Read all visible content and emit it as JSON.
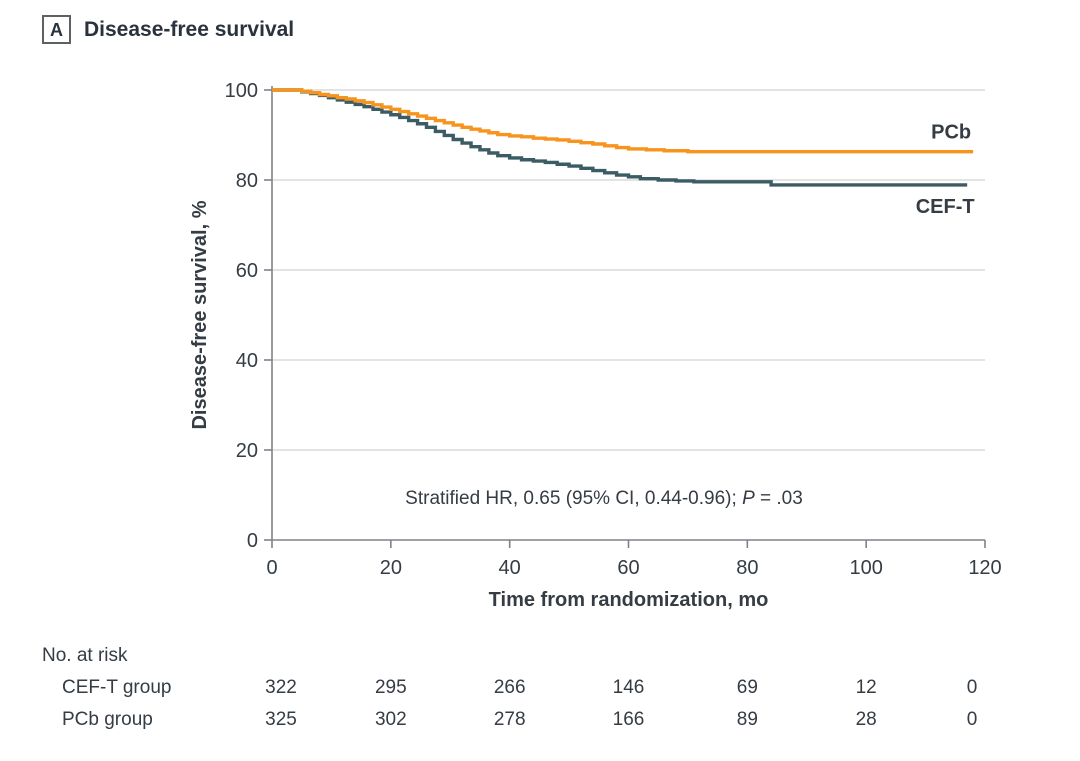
{
  "panel": {
    "label": "A",
    "title": "Disease-free survival"
  },
  "chart_data": {
    "type": "line",
    "variant": "kaplan-meier-step",
    "title": "Disease-free survival",
    "xlabel": "Time from randomization, mo",
    "ylabel": "Disease-free survival, %",
    "xlim": [
      0,
      120
    ],
    "ylim": [
      0,
      100
    ],
    "xticks": [
      0,
      20,
      40,
      60,
      80,
      100,
      120
    ],
    "yticks": [
      0,
      20,
      40,
      60,
      80,
      100
    ],
    "grid": "horizontal",
    "legend_position": "right-of-curves",
    "colors": {
      "gridline": "#dadada",
      "axis": "#7f8287",
      "text": "#353c44",
      "label_text": "#2a323c"
    },
    "annotation": {
      "prefix": "Stratified HR, 0.65 (95% CI, 0.44-0.96); ",
      "p_symbol": "P",
      "p_value": " = .03"
    },
    "series": [
      {
        "name": "CEF-T",
        "label": "CEF-T",
        "color": "#3b5c64",
        "points": [
          [
            0,
            100
          ],
          [
            3.5,
            100
          ],
          [
            5,
            99.6
          ],
          [
            6.5,
            99.2
          ],
          [
            8,
            98.8
          ],
          [
            9.5,
            98.3
          ],
          [
            11,
            97.8
          ],
          [
            12.5,
            97.3
          ],
          [
            14,
            96.8
          ],
          [
            15.5,
            96.3
          ],
          [
            17,
            95.7
          ],
          [
            18.5,
            95.1
          ],
          [
            20,
            94.5
          ],
          [
            21.5,
            93.9
          ],
          [
            23,
            93.2
          ],
          [
            24.5,
            92.5
          ],
          [
            26,
            91.7
          ],
          [
            27.5,
            90.8
          ],
          [
            29,
            89.9
          ],
          [
            30.5,
            89.0
          ],
          [
            32,
            88.2
          ],
          [
            33.5,
            87.4
          ],
          [
            35,
            86.7
          ],
          [
            36.5,
            86.0
          ],
          [
            38,
            85.4
          ],
          [
            40,
            84.9
          ],
          [
            42,
            84.5
          ],
          [
            44,
            84.2
          ],
          [
            46,
            83.9
          ],
          [
            48,
            83.5
          ],
          [
            50,
            83.1
          ],
          [
            52,
            82.6
          ],
          [
            54,
            82.1
          ],
          [
            56,
            81.6
          ],
          [
            58,
            81.1
          ],
          [
            60,
            80.7
          ],
          [
            62,
            80.3
          ],
          [
            65,
            80.0
          ],
          [
            68,
            79.8
          ],
          [
            71,
            79.6
          ],
          [
            84,
            78.9
          ],
          [
            117,
            78.9
          ]
        ]
      },
      {
        "name": "PCb",
        "label": "PCb",
        "color": "#f7941e",
        "points": [
          [
            0,
            100
          ],
          [
            3.5,
            100
          ],
          [
            5,
            99.7
          ],
          [
            6.5,
            99.4
          ],
          [
            8,
            99.0
          ],
          [
            9.5,
            98.7
          ],
          [
            11,
            98.3
          ],
          [
            12.5,
            98.0
          ],
          [
            14,
            97.6
          ],
          [
            15.5,
            97.2
          ],
          [
            17,
            96.7
          ],
          [
            18.5,
            96.2
          ],
          [
            20,
            95.7
          ],
          [
            21.5,
            95.2
          ],
          [
            23,
            94.7
          ],
          [
            24.5,
            94.2
          ],
          [
            26,
            93.7
          ],
          [
            27.5,
            93.2
          ],
          [
            29,
            92.7
          ],
          [
            30.5,
            92.2
          ],
          [
            32,
            91.7
          ],
          [
            33.5,
            91.3
          ],
          [
            35,
            90.9
          ],
          [
            36.5,
            90.5
          ],
          [
            38,
            90.1
          ],
          [
            40,
            89.8
          ],
          [
            42,
            89.6
          ],
          [
            44,
            89.3
          ],
          [
            46,
            89.1
          ],
          [
            48,
            88.9
          ],
          [
            50,
            88.6
          ],
          [
            52,
            88.3
          ],
          [
            54,
            88.0
          ],
          [
            56,
            87.6
          ],
          [
            58,
            87.2
          ],
          [
            60,
            86.9
          ],
          [
            63,
            86.7
          ],
          [
            66,
            86.5
          ],
          [
            70,
            86.3
          ],
          [
            118,
            86.3
          ]
        ]
      }
    ],
    "risk_table": {
      "title": "No. at risk",
      "times": [
        0,
        20,
        40,
        60,
        80,
        100,
        120
      ],
      "rows": [
        {
          "label": "CEF-T group",
          "counts": [
            322,
            295,
            266,
            146,
            69,
            12,
            0
          ]
        },
        {
          "label": "PCb group",
          "counts": [
            325,
            302,
            278,
            166,
            89,
            28,
            0
          ]
        }
      ]
    }
  }
}
